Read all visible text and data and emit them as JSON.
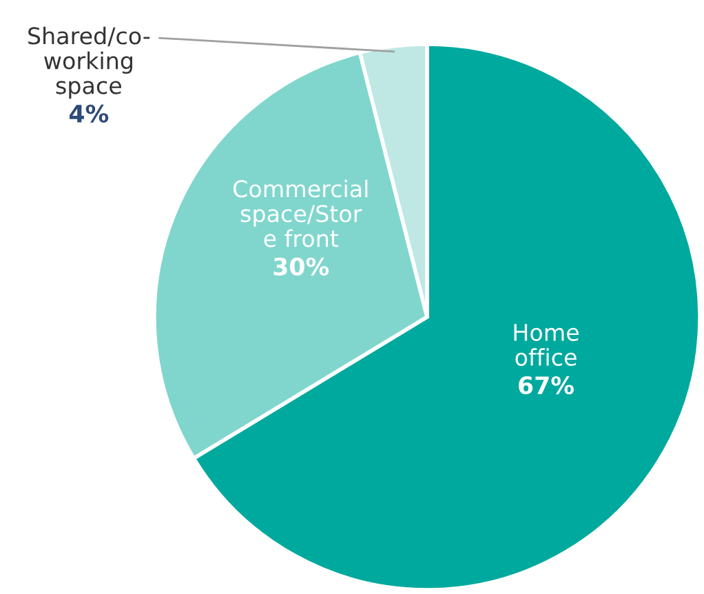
{
  "chart_data": {
    "type": "pie",
    "categories": [
      "Home\noffice",
      "Commercial\nspace/Stor\ne front",
      "Shared/co-\nworking\nspace"
    ],
    "values": [
      67,
      30,
      4
    ],
    "value_labels": [
      "67%",
      "30%",
      "4%"
    ],
    "colors": [
      "#00a99d",
      "#80d6cd",
      "#bfe8e5"
    ],
    "legend": false
  }
}
